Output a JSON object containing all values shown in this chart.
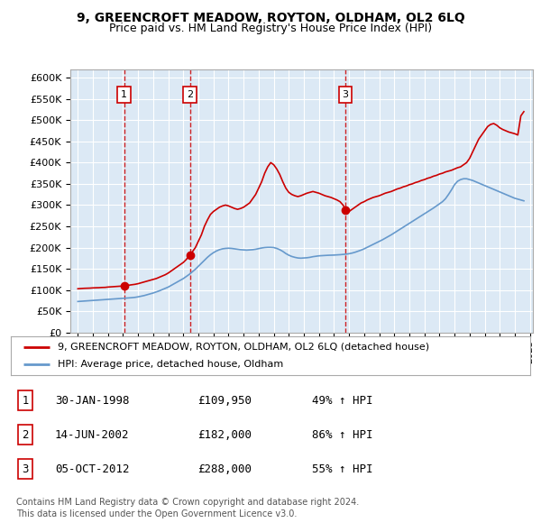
{
  "title": "9, GREENCROFT MEADOW, ROYTON, OLDHAM, OL2 6LQ",
  "subtitle": "Price paid vs. HM Land Registry's House Price Index (HPI)",
  "plot_bg_color": "#dce9f5",
  "legend_line1": "9, GREENCROFT MEADOW, ROYTON, OLDHAM, OL2 6LQ (detached house)",
  "legend_line2": "HPI: Average price, detached house, Oldham",
  "footer1": "Contains HM Land Registry data © Crown copyright and database right 2024.",
  "footer2": "This data is licensed under the Open Government Licence v3.0.",
  "sales": [
    {
      "num": 1,
      "date_val": 1998.08,
      "price": 109950,
      "label": "30-JAN-1998",
      "price_str": "£109,950",
      "pct": "49% ↑ HPI"
    },
    {
      "num": 2,
      "date_val": 2002.45,
      "price": 182000,
      "label": "14-JUN-2002",
      "price_str": "£182,000",
      "pct": "86% ↑ HPI"
    },
    {
      "num": 3,
      "date_val": 2012.75,
      "price": 288000,
      "label": "05-OCT-2012",
      "price_str": "£288,000",
      "pct": "55% ↑ HPI"
    }
  ],
  "red_line_x": [
    1995.0,
    1995.2,
    1995.4,
    1995.6,
    1995.8,
    1996.0,
    1996.2,
    1996.4,
    1996.6,
    1996.8,
    1997.0,
    1997.2,
    1997.4,
    1997.6,
    1997.8,
    1998.0,
    1998.2,
    1998.4,
    1998.6,
    1998.8,
    1999.0,
    1999.2,
    1999.4,
    1999.6,
    1999.8,
    2000.0,
    2000.2,
    2000.4,
    2000.6,
    2000.8,
    2001.0,
    2001.2,
    2001.4,
    2001.6,
    2001.8,
    2002.0,
    2002.2,
    2002.4,
    2002.6,
    2002.8,
    2003.0,
    2003.2,
    2003.4,
    2003.6,
    2003.8,
    2004.0,
    2004.2,
    2004.4,
    2004.6,
    2004.8,
    2005.0,
    2005.2,
    2005.4,
    2005.6,
    2005.8,
    2006.0,
    2006.2,
    2006.4,
    2006.6,
    2006.8,
    2007.0,
    2007.2,
    2007.4,
    2007.6,
    2007.8,
    2008.0,
    2008.2,
    2008.4,
    2008.6,
    2008.8,
    2009.0,
    2009.2,
    2009.4,
    2009.6,
    2009.8,
    2010.0,
    2010.2,
    2010.4,
    2010.6,
    2010.8,
    2011.0,
    2011.2,
    2011.4,
    2011.6,
    2011.8,
    2012.0,
    2012.2,
    2012.4,
    2012.6,
    2012.8,
    2013.0,
    2013.2,
    2013.4,
    2013.6,
    2013.8,
    2014.0,
    2014.2,
    2014.4,
    2014.6,
    2014.8,
    2015.0,
    2015.2,
    2015.4,
    2015.6,
    2015.8,
    2016.0,
    2016.2,
    2016.4,
    2016.6,
    2016.8,
    2017.0,
    2017.2,
    2017.4,
    2017.6,
    2017.8,
    2018.0,
    2018.2,
    2018.4,
    2018.6,
    2018.8,
    2019.0,
    2019.2,
    2019.4,
    2019.6,
    2019.8,
    2020.0,
    2020.2,
    2020.4,
    2020.6,
    2020.8,
    2021.0,
    2021.2,
    2021.4,
    2021.6,
    2021.8,
    2022.0,
    2022.2,
    2022.4,
    2022.6,
    2022.8,
    2023.0,
    2023.2,
    2023.4,
    2023.6,
    2023.8,
    2024.0,
    2024.2,
    2024.4,
    2024.6
  ],
  "red_line_y": [
    103000,
    103500,
    104000,
    104200,
    104500,
    105000,
    105200,
    105500,
    106000,
    106200,
    107000,
    107500,
    108000,
    108500,
    109000,
    109500,
    110500,
    111500,
    112500,
    113500,
    115000,
    117000,
    119000,
    121000,
    123000,
    125000,
    127000,
    130000,
    133000,
    136000,
    140000,
    145000,
    150000,
    155000,
    160000,
    165000,
    172000,
    182000,
    190000,
    200000,
    215000,
    230000,
    250000,
    265000,
    278000,
    285000,
    290000,
    295000,
    298000,
    300000,
    298000,
    295000,
    292000,
    290000,
    292000,
    295000,
    300000,
    305000,
    315000,
    325000,
    340000,
    355000,
    375000,
    390000,
    400000,
    395000,
    385000,
    372000,
    355000,
    340000,
    330000,
    325000,
    322000,
    320000,
    322000,
    325000,
    328000,
    330000,
    332000,
    330000,
    328000,
    325000,
    322000,
    320000,
    318000,
    315000,
    312000,
    308000,
    300000,
    288000,
    285000,
    290000,
    295000,
    300000,
    305000,
    308000,
    312000,
    315000,
    318000,
    320000,
    322000,
    325000,
    328000,
    330000,
    332000,
    335000,
    338000,
    340000,
    343000,
    345000,
    348000,
    350000,
    353000,
    355000,
    358000,
    360000,
    363000,
    365000,
    368000,
    370000,
    373000,
    375000,
    378000,
    380000,
    382000,
    385000,
    388000,
    390000,
    395000,
    400000,
    410000,
    425000,
    440000,
    455000,
    465000,
    475000,
    485000,
    490000,
    492000,
    488000,
    482000,
    478000,
    475000,
    472000,
    470000,
    468000,
    465000,
    510000,
    520000
  ],
  "blue_line_x": [
    1995.0,
    1995.2,
    1995.4,
    1995.6,
    1995.8,
    1996.0,
    1996.2,
    1996.4,
    1996.6,
    1996.8,
    1997.0,
    1997.2,
    1997.4,
    1997.6,
    1997.8,
    1998.0,
    1998.2,
    1998.4,
    1998.6,
    1998.8,
    1999.0,
    1999.2,
    1999.4,
    1999.6,
    1999.8,
    2000.0,
    2000.2,
    2000.4,
    2000.6,
    2000.8,
    2001.0,
    2001.2,
    2001.4,
    2001.6,
    2001.8,
    2002.0,
    2002.2,
    2002.4,
    2002.6,
    2002.8,
    2003.0,
    2003.2,
    2003.4,
    2003.6,
    2003.8,
    2004.0,
    2004.2,
    2004.4,
    2004.6,
    2004.8,
    2005.0,
    2005.2,
    2005.4,
    2005.6,
    2005.8,
    2006.0,
    2006.2,
    2006.4,
    2006.6,
    2006.8,
    2007.0,
    2007.2,
    2007.4,
    2007.6,
    2007.8,
    2008.0,
    2008.2,
    2008.4,
    2008.6,
    2008.8,
    2009.0,
    2009.2,
    2009.4,
    2009.6,
    2009.8,
    2010.0,
    2010.2,
    2010.4,
    2010.6,
    2010.8,
    2011.0,
    2011.2,
    2011.4,
    2011.6,
    2011.8,
    2012.0,
    2012.2,
    2012.4,
    2012.6,
    2012.8,
    2013.0,
    2013.2,
    2013.4,
    2013.6,
    2013.8,
    2014.0,
    2014.2,
    2014.4,
    2014.6,
    2014.8,
    2015.0,
    2015.2,
    2015.4,
    2015.6,
    2015.8,
    2016.0,
    2016.2,
    2016.4,
    2016.6,
    2016.8,
    2017.0,
    2017.2,
    2017.4,
    2017.6,
    2017.8,
    2018.0,
    2018.2,
    2018.4,
    2018.6,
    2018.8,
    2019.0,
    2019.2,
    2019.4,
    2019.6,
    2019.8,
    2020.0,
    2020.2,
    2020.4,
    2020.6,
    2020.8,
    2021.0,
    2021.2,
    2021.4,
    2021.6,
    2021.8,
    2022.0,
    2022.2,
    2022.4,
    2022.6,
    2022.8,
    2023.0,
    2023.2,
    2023.4,
    2023.6,
    2023.8,
    2024.0,
    2024.2,
    2024.4,
    2024.6
  ],
  "blue_line_y": [
    73000,
    73500,
    74000,
    74500,
    75000,
    75500,
    76000,
    76500,
    77000,
    77500,
    78000,
    78500,
    79000,
    79500,
    80000,
    80500,
    81000,
    81500,
    82000,
    82800,
    84000,
    85500,
    87000,
    89000,
    91000,
    93000,
    95500,
    98000,
    101000,
    104000,
    107000,
    111000,
    115000,
    119000,
    123000,
    127000,
    132000,
    137000,
    143000,
    149000,
    156000,
    163000,
    170000,
    177000,
    183000,
    188000,
    192000,
    195000,
    197000,
    198000,
    198500,
    198000,
    197000,
    196000,
    195000,
    194500,
    194000,
    194500,
    195000,
    196000,
    197500,
    199000,
    200000,
    200500,
    200500,
    200000,
    198000,
    195000,
    191000,
    186000,
    182000,
    179000,
    177000,
    175500,
    175000,
    175500,
    176000,
    177000,
    178500,
    179500,
    180500,
    181000,
    181500,
    181800,
    182000,
    182300,
    182700,
    183200,
    183800,
    184500,
    185500,
    187000,
    189000,
    191500,
    194000,
    197000,
    200500,
    204000,
    207500,
    211000,
    214500,
    218000,
    222000,
    226000,
    230000,
    234500,
    239000,
    243500,
    248000,
    252500,
    257000,
    261500,
    266000,
    270500,
    275000,
    279500,
    284000,
    288500,
    293000,
    298000,
    303000,
    308000,
    315000,
    325000,
    336000,
    348000,
    356000,
    360000,
    362000,
    362000,
    360000,
    358000,
    355000,
    352000,
    349000,
    346000,
    343000,
    340000,
    337000,
    334000,
    331000,
    328000,
    325000,
    322000,
    319000,
    316000,
    314000,
    312000,
    310000
  ]
}
